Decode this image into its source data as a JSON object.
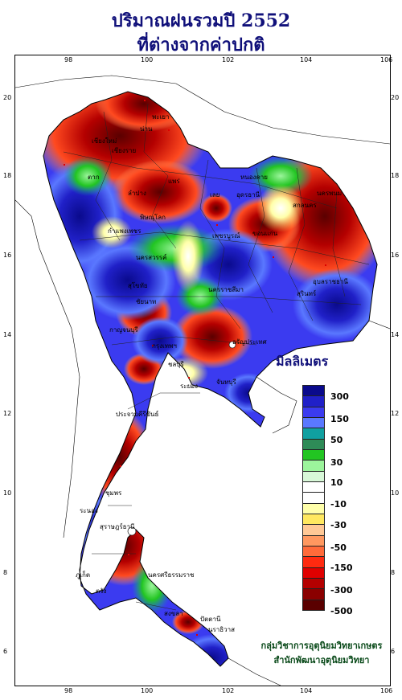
{
  "title": {
    "line1": "ปริมาณฝนรวมปี 2552",
    "line2": "ที่ต่างจากค่าปกติ"
  },
  "axes": {
    "x_ticks": [
      "98",
      "100",
      "102",
      "104",
      "106"
    ],
    "y_ticks": [
      "20",
      "18",
      "16",
      "14",
      "12",
      "10",
      "8",
      "6"
    ]
  },
  "legend": {
    "unit": "มิลลิเมตร",
    "labels": [
      "300",
      "150",
      "50",
      "30",
      "10",
      "-10",
      "-30",
      "-50",
      "-150",
      "-300",
      "-500"
    ],
    "colors": [
      "#0a0a8c",
      "#2020c8",
      "#3b3bf0",
      "#5a78ff",
      "#10a0a0",
      "#2e8b57",
      "#22c522",
      "#9cf59c",
      "#d8f8d8",
      "#ffffff",
      "#ffffff",
      "#ffffaa",
      "#ffe860",
      "#ffc896",
      "#ff9860",
      "#ff6a3a",
      "#ff2a10",
      "#e00000",
      "#b40000",
      "#8a0000",
      "#5a0000"
    ]
  },
  "places": [
    "เชียงใหม่",
    "เชียงราย",
    "น่าน",
    "ลำปาง",
    "แพร่",
    "พะเยา",
    "หนองคาย",
    "อุดรธานี",
    "นครพนม",
    "สกลนคร",
    "เลย",
    "พิษณุโลก",
    "กำแพงเพชร",
    "นครสวรรค์",
    "ขอนแก่น",
    "นครราชสีมา",
    "อุบลราชธานี",
    "สุรินทร์",
    "ชัยนาท",
    "กาญจนบุรี",
    "กรุงเทพฯ",
    "ชลบุรี",
    "ระยอง",
    "จันทบุรี",
    "ประจวบคีรีขันธ์",
    "ชุมพร",
    "ระนอง",
    "สุราษฎร์ธานี",
    "ภูเก็ต",
    "นครศรีธรรมราช",
    "ตรัง",
    "สงขลา",
    "ปัตตานี",
    "นราธิวาส",
    "ตาก",
    "เพชรบูรณ์",
    "สุโขทัย",
    "อรัญประเทศ"
  ],
  "agency": {
    "line1": "กลุ่มวิชาการอุตุนิยมวิทยาเกษตร",
    "line2": "สำนักพัฒนาอุตุนิยมวิทยา"
  },
  "colors": {
    "title": "#10107a",
    "agency": "#0a4a1a"
  }
}
